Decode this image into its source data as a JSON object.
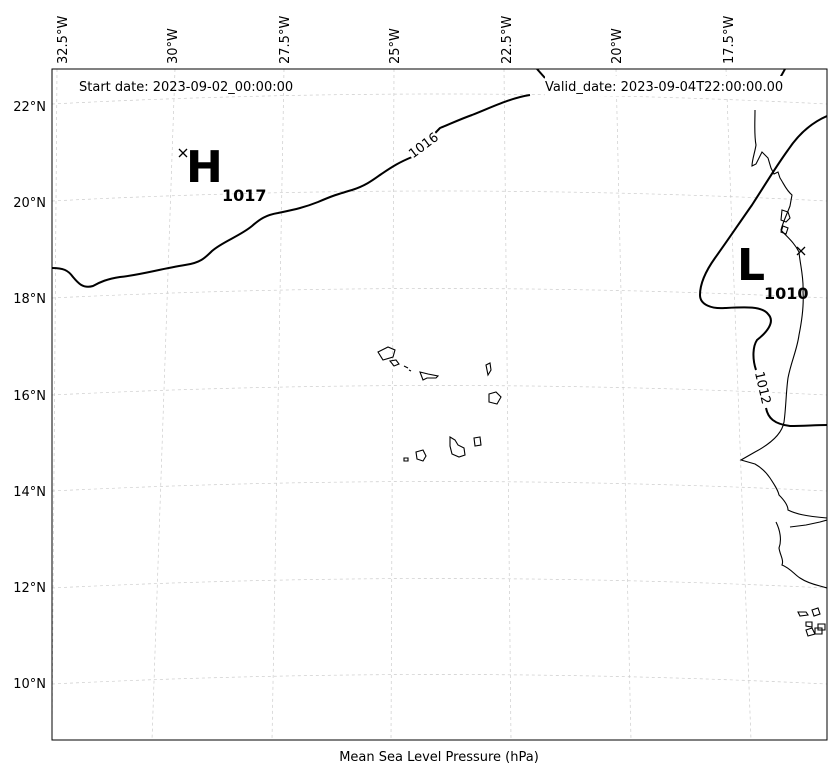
{
  "map": {
    "start_date": "Start date: 2023-09-02_00:00:00",
    "valid_date": "Valid_date: 2023-09-04T22:00:00.00",
    "caption": "Mean Sea Level Pressure (hPa)",
    "lon_labels": [
      "32.5°W",
      "30°W",
      "27.5°W",
      "25°W",
      "22.5°W",
      "20°W",
      "17.5°W"
    ],
    "lat_labels": [
      "22°N",
      "20°N",
      "18°N",
      "16°N",
      "14°N",
      "12°N",
      "10°N"
    ],
    "high_center": {
      "letter": "H",
      "value": "1017"
    },
    "low_center": {
      "letter": "L",
      "value": "1010"
    },
    "isobar_labels": [
      "1016",
      "1012"
    ],
    "colors": {
      "isobar": "#000000",
      "coast": "#000000",
      "grid": "#cccccc"
    }
  }
}
